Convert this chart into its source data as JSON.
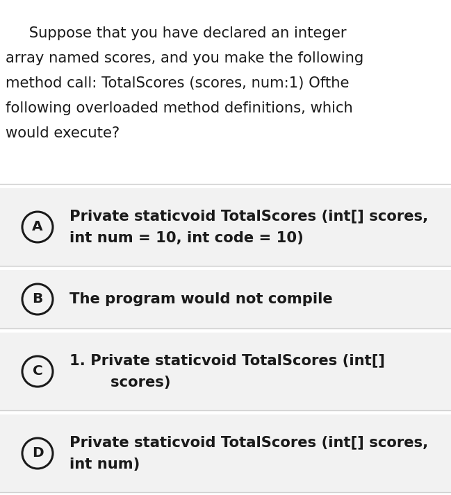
{
  "bg_color": "#ffffff",
  "question_bg": "#ffffff",
  "option_bg": "#f2f2f2",
  "divider_color": "#d0d0d0",
  "text_color": "#1a1a1a",
  "question_lines": [
    "     Suppose that you have declared an integer",
    "array named scores, and you make the following",
    "method call: TotalScores (scores, num:1) Ofthe",
    "following overloaded method definitions, which",
    "would execute?"
  ],
  "options": [
    {
      "label": "A",
      "lines": [
        "Private staticvoid TotalScores (int[] scores,",
        "int num = 10, int code = 10)"
      ]
    },
    {
      "label": "B",
      "lines": [
        "The program would not compile"
      ]
    },
    {
      "label": "C",
      "lines": [
        "1. Private staticvoid TotalScores (int[]",
        "        scores)"
      ]
    },
    {
      "label": "D",
      "lines": [
        "Private staticvoid TotalScores (int[] scores,",
        "int num)"
      ]
    }
  ],
  "figsize": [
    6.49,
    7.13
  ],
  "dpi": 100,
  "q_fontsize": 15.2,
  "opt_fontsize": 15.2,
  "label_fontsize": 14.5
}
